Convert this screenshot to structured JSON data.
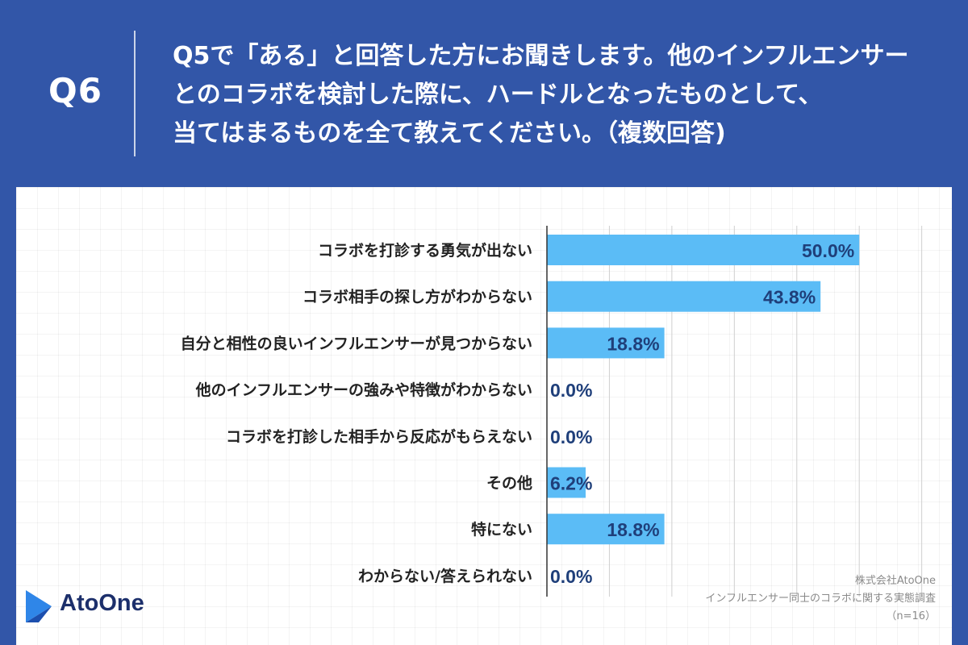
{
  "header": {
    "qnum": "Q6",
    "question_lines": [
      "Q5で「ある」と回答した方にお聞きします。他のインフルエンサー",
      "とのコラボを検討した際に、ハードルとなったものとして、",
      "当てはまるものを全て教えてください。（複数回答)"
    ]
  },
  "footer": {
    "logo_text": "AtoOne",
    "company": "株式会社AtoOne",
    "survey": "インフルエンサー同士のコラボに関する実態調査",
    "sample": "（n=16）"
  },
  "colors": {
    "header_bg": "#3256a8",
    "bar": "#5bbcf6",
    "value_text": "#1f3f7a",
    "logo_mark": "#2f86e8"
  },
  "chart_data": {
    "type": "bar",
    "orientation": "horizontal",
    "categories": [
      "コラボを打診する勇気が出ない",
      "コラボ相手の探し方がわからない",
      "自分と相性の良いインフルエンサーが見つからない",
      "他のインフルエンサーの強みや特徴がわからない",
      "コラボを打診した相手から反応がもらえない",
      "その他",
      "特にない",
      "わからない/答えられない"
    ],
    "values": [
      50.0,
      43.8,
      18.8,
      0.0,
      0.0,
      6.2,
      18.8,
      0.0
    ],
    "value_labels": [
      "50.0%",
      "43.8%",
      "18.8%",
      "0.0%",
      "0.0%",
      "6.2%",
      "18.8%",
      "0.0%"
    ],
    "xlim": [
      0,
      62.5
    ],
    "grid": true
  }
}
